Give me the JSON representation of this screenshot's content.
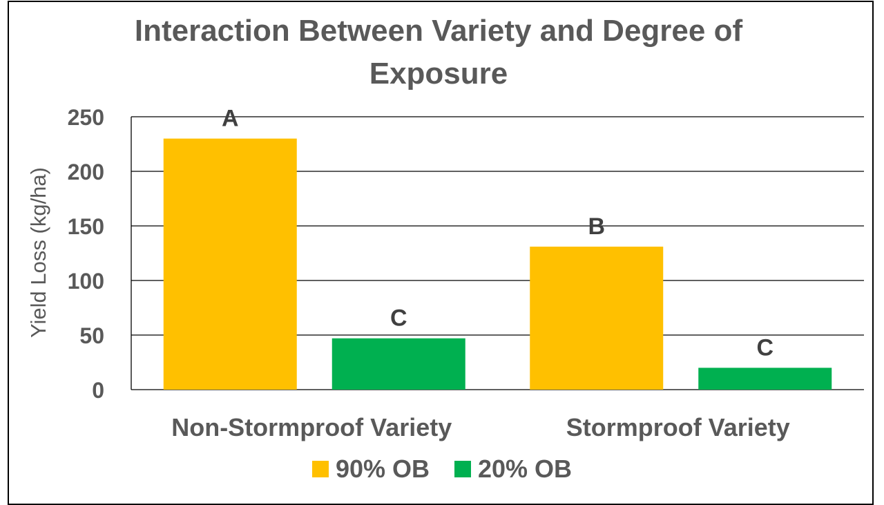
{
  "chart_data": {
    "type": "bar",
    "title": "Interaction Between Variety and Degree of Exposure",
    "title_lines": [
      "Interaction Between Variety and Degree of",
      "Exposure"
    ],
    "xlabel": "",
    "ylabel": "Yield Loss (kg/ha)",
    "ylim": [
      0,
      250
    ],
    "yticks": [
      0,
      50,
      100,
      150,
      200,
      250
    ],
    "grid": true,
    "legend_position": "bottom",
    "categories": [
      "Non-Stormproof Variety",
      "Stormproof Variety"
    ],
    "series": [
      {
        "name": "90% OB",
        "color": "#FFC000",
        "values": [
          230,
          131
        ],
        "labels": [
          "A",
          "B"
        ]
      },
      {
        "name": "20% OB",
        "color": "#00B050",
        "values": [
          47,
          20
        ],
        "labels": [
          "C",
          "C"
        ]
      }
    ]
  }
}
